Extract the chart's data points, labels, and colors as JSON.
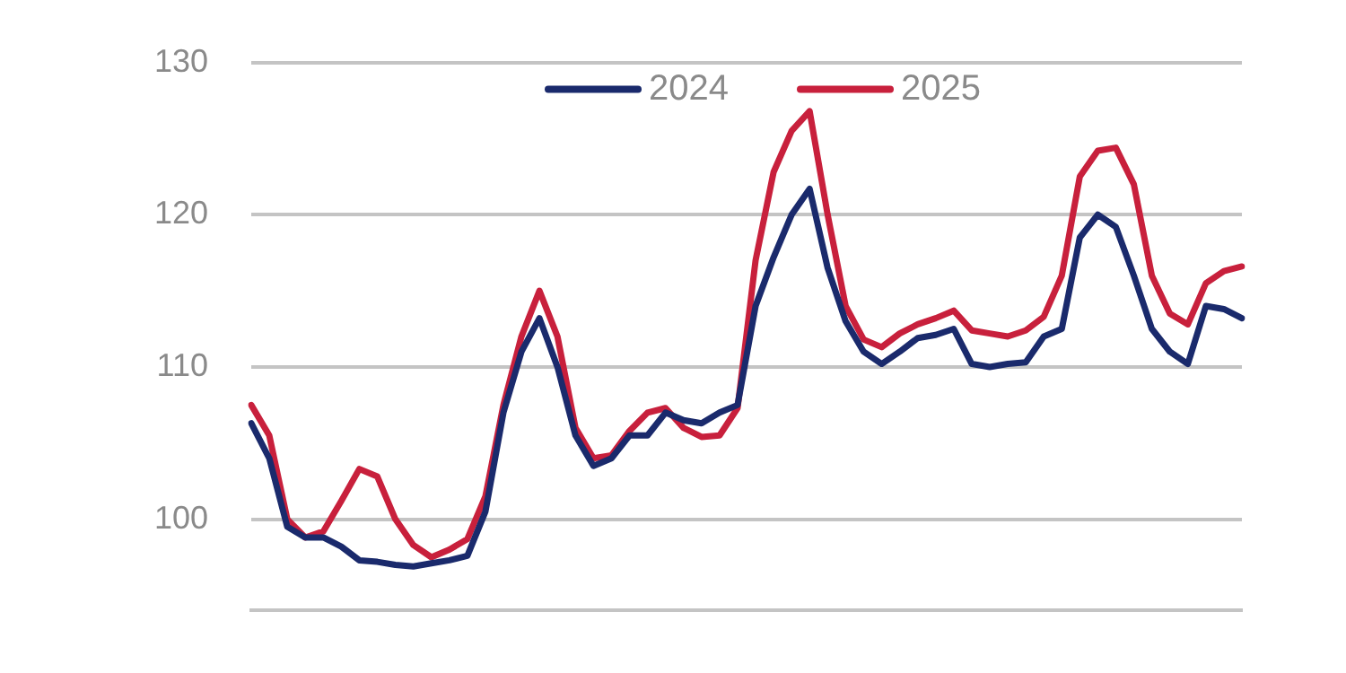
{
  "chart_data": {
    "type": "line",
    "categories": [
      null,
      null,
      null,
      null,
      null,
      null,
      null,
      null,
      null,
      null,
      null,
      null,
      null,
      null,
      null,
      null,
      null,
      null,
      null,
      null,
      null,
      null,
      null,
      null,
      null,
      null,
      null,
      null,
      null,
      null,
      null,
      null,
      null,
      null,
      null,
      null,
      null,
      null,
      null,
      null,
      null,
      null,
      null,
      null,
      null,
      null,
      null,
      null,
      null,
      null,
      null,
      null,
      null,
      null,
      null,
      null
    ],
    "series": [
      {
        "name": "2024",
        "color": "#1a2a6c",
        "values": [
          106.3,
          104,
          99.5,
          98.8,
          98.8,
          98.2,
          97.3,
          97.2,
          97,
          96.9,
          97.1,
          97.3,
          97.6,
          100.5,
          107,
          111,
          113.2,
          110,
          105.5,
          103.5,
          104,
          105.5,
          105.5,
          107,
          106.5,
          106.3,
          107,
          107.5,
          114,
          117.2,
          120,
          121.7,
          116.5,
          113,
          111,
          110.2,
          111,
          111.9,
          112.1,
          112.5,
          110.2,
          110,
          110.2,
          110.3,
          112,
          112.5,
          118.5,
          120,
          119.2,
          116,
          112.5,
          111,
          110.2,
          114,
          113.8,
          113.2
        ]
      },
      {
        "name": "2025",
        "color": "#c8203c",
        "values": [
          107.5,
          105.5,
          100,
          98.8,
          99.2,
          101.2,
          103.3,
          102.8,
          100,
          98.3,
          97.5,
          98,
          98.7,
          101.5,
          107.5,
          112,
          115,
          112,
          106,
          104,
          104.2,
          105.8,
          107,
          107.3,
          106,
          105.4,
          105.5,
          107.3,
          117,
          122.8,
          125.5,
          126.8,
          120,
          114,
          111.8,
          111.3,
          112.2,
          112.8,
          113.2,
          113.7,
          112.4,
          112.2,
          112,
          112.4,
          113.3,
          116,
          122.5,
          124.2,
          124.4,
          122,
          116,
          113.5,
          112.8,
          115.5,
          116.3,
          116.6
        ]
      }
    ],
    "ylim": [
      94,
      130
    ],
    "yticks": [
      100,
      110,
      120,
      130
    ],
    "grid": "y",
    "legend": "top",
    "tick_labels": "y",
    "marker": "none",
    "line_style": "solid"
  }
}
